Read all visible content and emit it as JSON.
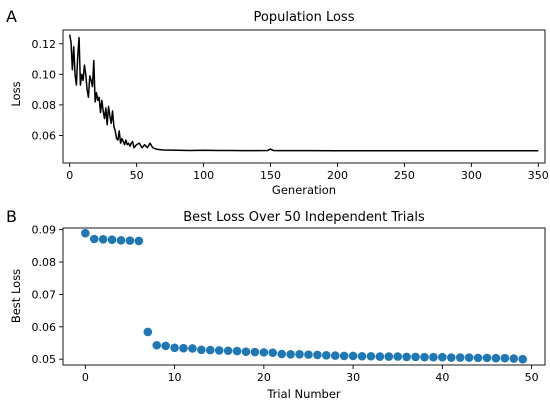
{
  "panels": {
    "a": {
      "letter": "A"
    },
    "b": {
      "letter": "B"
    }
  },
  "chart_data": [
    {
      "type": "line",
      "title": "Population Loss",
      "xlabel": "Generation",
      "ylabel": "Loss",
      "xlim": [
        -5,
        355
      ],
      "ylim": [
        0.042,
        0.129
      ],
      "x_ticks": [
        0,
        50,
        100,
        150,
        200,
        250,
        300,
        350
      ],
      "y_ticks": [
        0.06,
        0.08,
        0.1,
        0.12
      ],
      "y_tick_labels": [
        "0.06",
        "0.08",
        "0.10",
        "0.12"
      ],
      "color": "#000000",
      "grid": false,
      "series": [
        {
          "x": [
            0,
            1,
            2,
            3,
            4,
            5,
            6,
            7,
            8,
            9,
            10,
            11,
            12,
            13,
            14,
            15,
            16,
            17,
            18,
            19,
            20,
            21,
            22,
            23,
            24,
            25,
            26,
            27,
            28,
            29,
            30,
            31,
            32,
            33,
            34,
            35,
            36,
            37,
            38,
            39,
            40,
            41,
            42,
            43,
            44,
            45,
            46,
            47,
            48,
            49,
            50,
            52,
            54,
            56,
            58,
            60,
            62,
            65,
            70,
            80,
            90,
            100,
            110,
            120,
            130,
            140,
            148,
            150,
            152,
            155,
            160,
            180,
            200,
            220,
            240,
            260,
            280,
            300,
            320,
            340,
            350
          ],
          "y": [
            0.126,
            0.121,
            0.103,
            0.118,
            0.1,
            0.093,
            0.112,
            0.124,
            0.093,
            0.1,
            0.096,
            0.106,
            0.1,
            0.09,
            0.085,
            0.099,
            0.096,
            0.092,
            0.109,
            0.082,
            0.088,
            0.083,
            0.085,
            0.075,
            0.083,
            0.076,
            0.071,
            0.078,
            0.067,
            0.079,
            0.073,
            0.068,
            0.076,
            0.066,
            0.063,
            0.058,
            0.057,
            0.063,
            0.055,
            0.058,
            0.056,
            0.054,
            0.057,
            0.054,
            0.055,
            0.053,
            0.055,
            0.056,
            0.052,
            0.053,
            0.054,
            0.055,
            0.052,
            0.054,
            0.052,
            0.055,
            0.052,
            0.051,
            0.0505,
            0.0503,
            0.0502,
            0.0503,
            0.0502,
            0.0502,
            0.0501,
            0.0501,
            0.0502,
            0.0511,
            0.0502,
            0.0501,
            0.0501,
            0.0501,
            0.05,
            0.05,
            0.05,
            0.05,
            0.05,
            0.05,
            0.05,
            0.05,
            0.05
          ]
        }
      ]
    },
    {
      "type": "scatter",
      "title": "Best Loss Over 50 Independent Trials",
      "xlabel": "Trial Number",
      "ylabel": "Best Loss",
      "xlim": [
        -2.5,
        51.5
      ],
      "ylim": [
        0.0482,
        0.0905
      ],
      "x_ticks": [
        0,
        10,
        20,
        30,
        40,
        50
      ],
      "y_ticks": [
        0.05,
        0.06,
        0.07,
        0.08,
        0.09
      ],
      "y_tick_labels": [
        "0.05",
        "0.06",
        "0.07",
        "0.08",
        "0.09"
      ],
      "color": "#1f77b4",
      "grid": false,
      "series": [
        {
          "x": [
            0,
            1,
            2,
            3,
            4,
            5,
            6,
            7,
            8,
            9,
            10,
            11,
            12,
            13,
            14,
            15,
            16,
            17,
            18,
            19,
            20,
            21,
            22,
            23,
            24,
            25,
            26,
            27,
            28,
            29,
            30,
            31,
            32,
            33,
            34,
            35,
            36,
            37,
            38,
            39,
            40,
            41,
            42,
            43,
            44,
            45,
            46,
            47,
            48,
            49
          ],
          "y": [
            0.0889,
            0.0871,
            0.087,
            0.0869,
            0.0867,
            0.0866,
            0.0865,
            0.0584,
            0.0543,
            0.0541,
            0.0535,
            0.0534,
            0.0533,
            0.0529,
            0.0528,
            0.0527,
            0.0526,
            0.0525,
            0.0523,
            0.0522,
            0.0521,
            0.052,
            0.0516,
            0.0515,
            0.0515,
            0.0514,
            0.0513,
            0.0512,
            0.0511,
            0.051,
            0.051,
            0.0509,
            0.0509,
            0.0508,
            0.0508,
            0.0508,
            0.0507,
            0.0507,
            0.0506,
            0.0506,
            0.0506,
            0.0505,
            0.0505,
            0.0505,
            0.0504,
            0.0504,
            0.0503,
            0.0503,
            0.0502,
            0.05
          ]
        }
      ]
    }
  ]
}
